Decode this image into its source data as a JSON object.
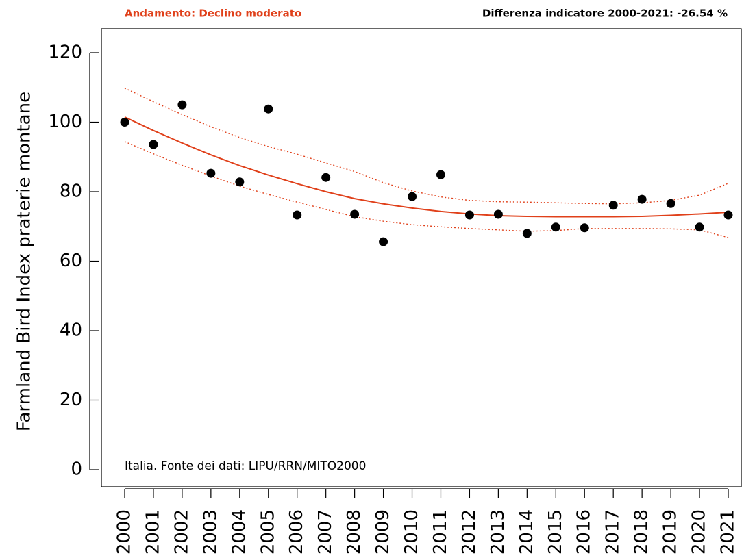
{
  "chart_data": {
    "type": "scatter",
    "title": "Andamento:  Declino moderato",
    "subtitle": "Differenza indicatore 2000-2021: -26.54 %",
    "y_label": "Farmland Bird Index praterie montane",
    "annotation": "Italia. Fonte dei dati: LIPU/RRN/MITO2000",
    "categories": [
      "2000",
      "2001",
      "2002",
      "2003",
      "2004",
      "2005",
      "2006",
      "2007",
      "2008",
      "2009",
      "2010",
      "2011",
      "2012",
      "2013",
      "2014",
      "2015",
      "2016",
      "2017",
      "2018",
      "2019",
      "2020",
      "2021"
    ],
    "values": [
      100,
      93.6,
      105,
      85.3,
      82.8,
      103.8,
      73.3,
      84.1,
      73.5,
      65.6,
      78.6,
      84.9,
      73.3,
      73.5,
      68,
      69.8,
      69.6,
      76.1,
      77.8,
      76.6,
      69.8,
      73.3
    ],
    "color": "#000000",
    "trend": {
      "color": "#e0401a",
      "values": [
        101.5,
        97.6,
        94,
        90.6,
        87.5,
        84.8,
        82.3,
        80,
        78,
        76.5,
        75.3,
        74.3,
        73.6,
        73.1,
        72.9,
        72.8,
        72.8,
        72.8,
        72.9,
        73.2,
        73.6,
        74.1
      ],
      "upper": [
        109.8,
        105.9,
        102.2,
        98.7,
        95.6,
        93,
        90.8,
        88.3,
        85.8,
        82.6,
        80.2,
        78.5,
        77.5,
        77.1,
        77,
        76.8,
        76.6,
        76.5,
        76.8,
        77.5,
        79,
        82.4
      ],
      "lower": [
        94.4,
        90.9,
        87.6,
        84.5,
        81.6,
        79.2,
        77,
        74.9,
        72.8,
        71.5,
        70.5,
        69.9,
        69.4,
        69,
        68.6,
        68.8,
        69.4,
        69.4,
        69.4,
        69.3,
        69,
        66.8
      ]
    },
    "ylim": [
      0,
      120
    ],
    "yticks": [
      0,
      20,
      40,
      60,
      80,
      100,
      120
    ],
    "grid": false
  }
}
